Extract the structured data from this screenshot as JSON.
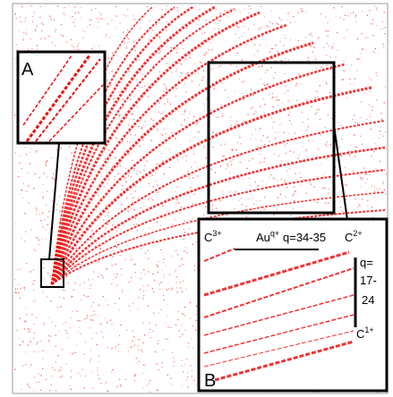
{
  "insets": {
    "a": {
      "label": "A"
    },
    "b": {
      "label": "B",
      "c3": {
        "base": "C",
        "charge": "3+"
      },
      "au": {
        "base": "Au",
        "charge": "q+"
      },
      "q_au": "q=34-35",
      "c2": {
        "base": "C",
        "charge": "2+"
      },
      "q_range": [
        "q=",
        "17-",
        "24"
      ],
      "c1": {
        "base": "C",
        "charge": "1+"
      }
    }
  }
}
